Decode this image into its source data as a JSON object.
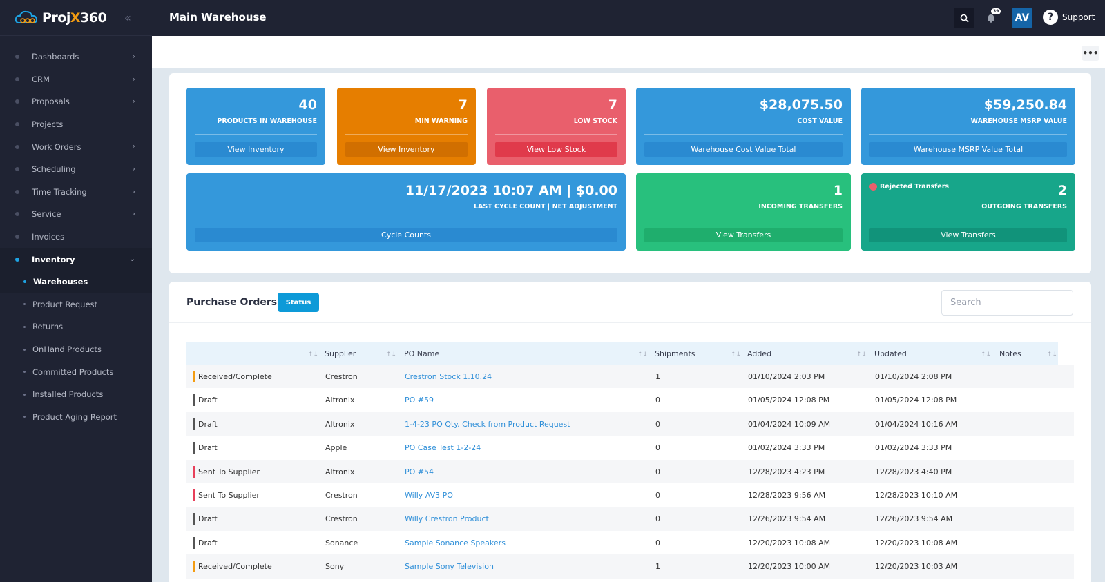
{
  "brand": {
    "name_prefix": "Proj",
    "name_x": "X",
    "name_suffix": "360"
  },
  "sidebar": {
    "items": [
      {
        "label": "Dashboards",
        "chevron": true
      },
      {
        "label": "CRM",
        "chevron": true
      },
      {
        "label": "Proposals",
        "chevron": true
      },
      {
        "label": "Projects",
        "chevron": false
      },
      {
        "label": "Work Orders",
        "chevron": true
      },
      {
        "label": "Scheduling",
        "chevron": true
      },
      {
        "label": "Time Tracking",
        "chevron": true
      },
      {
        "label": "Service",
        "chevron": true
      },
      {
        "label": "Invoices",
        "chevron": false
      },
      {
        "label": "Inventory",
        "chevron": true,
        "expanded": true
      }
    ],
    "subitems": [
      {
        "label": "Warehouses",
        "active": true
      },
      {
        "label": "Product Request"
      },
      {
        "label": "Returns"
      },
      {
        "label": "OnHand Products"
      },
      {
        "label": "Committed Products"
      },
      {
        "label": "Installed Products"
      },
      {
        "label": "Product Aging Report"
      }
    ]
  },
  "topbar": {
    "title": "Main Warehouse",
    "notif_count": "39",
    "avatar": "AV",
    "support": "Support"
  },
  "stats": {
    "products": {
      "value": "40",
      "label": "PRODUCTS IN WAREHOUSE",
      "button": "View Inventory"
    },
    "min_warning": {
      "value": "7",
      "label": "MIN WARNING",
      "button": "View Inventory"
    },
    "low_stock": {
      "value": "7",
      "label": "LOW STOCK",
      "button": "View Low Stock"
    },
    "cost_value": {
      "value": "$28,075.50",
      "label": "COST VALUE",
      "button": "Warehouse Cost Value Total"
    },
    "msrp_value": {
      "value": "$59,250.84",
      "label": "WAREHOUSE MSRP VALUE",
      "button": "Warehouse MSRP Value Total"
    },
    "cycle_count": {
      "value": "11/17/2023 10:07 AM | $0.00",
      "label": "LAST CYCLE COUNT | NET ADJUSTMENT",
      "button": "Cycle Counts"
    },
    "incoming": {
      "value": "1",
      "label": "INCOMING TRANSFERS",
      "button": "View Transfers"
    },
    "outgoing": {
      "value": "2",
      "label": "OUTGOING TRANSFERS",
      "button": "View Transfers",
      "flag": "Rejected Transfers"
    }
  },
  "purchase_orders": {
    "title": "Purchase Orders",
    "status_button": "Status",
    "search_placeholder": "Search",
    "columns": [
      "Supplier",
      "PO Name",
      "Shipments",
      "Added",
      "Updated",
      "Notes"
    ],
    "status_colors": {
      "Received/Complete": "#f39c12",
      "Draft": "#555555",
      "Sent To Supplier": "#e8405a"
    },
    "rows": [
      {
        "status": "Received/Complete",
        "supplier": "Crestron",
        "po_name": "Crestron Stock 1.10.24",
        "shipments": "1",
        "added": "01/10/2024 2:03 PM",
        "updated": "01/10/2024 2:08 PM",
        "notes": ""
      },
      {
        "status": "Draft",
        "supplier": "Altronix",
        "po_name": "PO #59",
        "shipments": "0",
        "added": "01/05/2024 12:08 PM",
        "updated": "01/05/2024 12:08 PM",
        "notes": ""
      },
      {
        "status": "Draft",
        "supplier": "Altronix",
        "po_name": "1-4-23 PO Qty. Check from Product Request",
        "shipments": "0",
        "added": "01/04/2024 10:09 AM",
        "updated": "01/04/2024 10:16 AM",
        "notes": ""
      },
      {
        "status": "Draft",
        "supplier": "Apple",
        "po_name": "PO Case Test 1-2-24",
        "shipments": "0",
        "added": "01/02/2024 3:33 PM",
        "updated": "01/02/2024 3:33 PM",
        "notes": ""
      },
      {
        "status": "Sent To Supplier",
        "supplier": "Altronix",
        "po_name": "PO #54",
        "shipments": "0",
        "added": "12/28/2023 4:23 PM",
        "updated": "12/28/2023 4:40 PM",
        "notes": ""
      },
      {
        "status": "Sent To Supplier",
        "supplier": "Crestron",
        "po_name": "Willy AV3 PO",
        "shipments": "0",
        "added": "12/28/2023 9:56 AM",
        "updated": "12/28/2023 10:10 AM",
        "notes": ""
      },
      {
        "status": "Draft",
        "supplier": "Crestron",
        "po_name": "Willy Crestron Product",
        "shipments": "0",
        "added": "12/26/2023 9:54 AM",
        "updated": "12/26/2023 9:54 AM",
        "notes": ""
      },
      {
        "status": "Draft",
        "supplier": "Sonance",
        "po_name": "Sample Sonance Speakers",
        "shipments": "0",
        "added": "12/20/2023 10:08 AM",
        "updated": "12/20/2023 10:08 AM",
        "notes": ""
      },
      {
        "status": "Received/Complete",
        "supplier": "Sony",
        "po_name": "Sample Sony Television",
        "shipments": "1",
        "added": "12/20/2023 10:00 AM",
        "updated": "12/20/2023 10:03 AM",
        "notes": ""
      }
    ]
  }
}
